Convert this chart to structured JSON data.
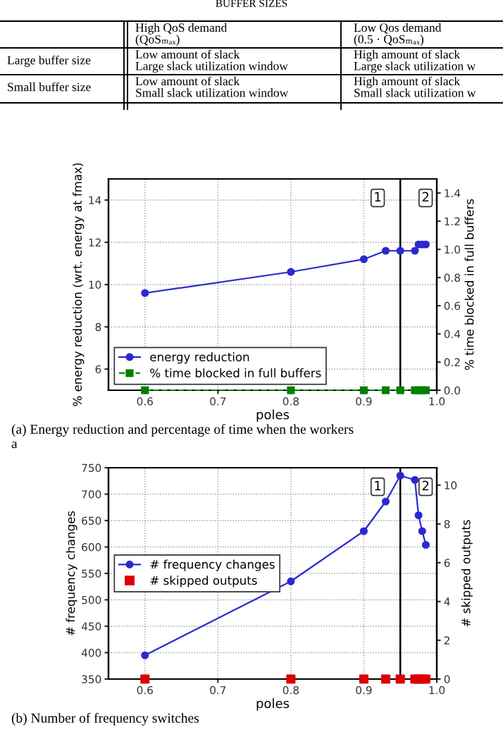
{
  "chart_data": [
    {
      "type": "other",
      "title": "BUFFER SIZES",
      "annotations": [
        "High QoS demand\n(QoSₘₐₓ)",
        "Low Qos demand\n(0.5 · QoSₘₐₓ)",
        "Large buffer size",
        "Low amount of slack\nLarge slack utilization window",
        "High amount of slack\nLarge slack utilization w",
        "Small buffer size",
        "Low amount of slack\nSmall slack utilization window",
        "High amount of slack\nSmall slack utilization w"
      ]
    },
    {
      "type": "line",
      "xlabel": "poles",
      "ylabel": "% energy reduction (wrt. energy at fmax)",
      "y2label": "% time blocked in full buffers",
      "xlim": [
        0.55,
        1.0
      ],
      "xticks": [
        0.6,
        0.7,
        0.8,
        0.9,
        {
          "value": 1,
          "label": "1.0"
        }
      ],
      "ylim": [
        5,
        15
      ],
      "yticks": [
        6,
        8,
        10,
        12,
        14
      ],
      "y2lim": [
        0,
        1.5
      ],
      "y2ticks": [
        {
          "value": 0,
          "label": "0.0"
        },
        0.2,
        0.4,
        0.6,
        0.8,
        {
          "value": 1,
          "label": "1.0"
        },
        1.2,
        1.4
      ],
      "grid": true,
      "legend": "bottom left",
      "series": [
        {
          "name": "energy reduction",
          "color": "#2a2ad0",
          "marker": "circle",
          "line_style": "solid",
          "x": [
            0.6,
            0.8,
            0.9,
            0.93,
            0.95,
            0.97,
            0.975,
            0.98,
            0.985
          ],
          "values": [
            9.6,
            10.6,
            11.2,
            11.6,
            11.6,
            11.6,
            11.9,
            11.9,
            11.9
          ]
        },
        {
          "name": "% time blocked in full buffers",
          "color": "#008000",
          "marker": "square",
          "line_style": "dashed",
          "axis": "y2",
          "x": [
            0.6,
            0.8,
            0.9,
            0.93,
            0.95,
            0.97,
            0.975,
            0.98,
            0.985
          ],
          "values": [
            0,
            0,
            0,
            0,
            0,
            0,
            0,
            0,
            0
          ]
        }
      ],
      "ref_lines": [
        {
          "axis": "x",
          "value": 0.95,
          "color": "#000000"
        }
      ],
      "annotations": [
        "1",
        "2",
        "(a) Energy reduction and percentage of time when the workers\na"
      ]
    },
    {
      "type": "line",
      "xlabel": "poles",
      "ylabel": "# frequency changes",
      "y2label": "# skipped outputs",
      "xlim": [
        0.55,
        1.0
      ],
      "xticks": [
        0.6,
        0.7,
        0.8,
        0.9,
        {
          "value": 1,
          "label": "1.0"
        }
      ],
      "ylim": [
        350,
        750
      ],
      "yticks": [
        350,
        400,
        450,
        500,
        550,
        600,
        650,
        700,
        750
      ],
      "y2lim": [
        0,
        10.9
      ],
      "y2ticks": [
        0,
        2,
        4,
        6,
        8,
        10
      ],
      "grid": true,
      "legend": "left",
      "series": [
        {
          "name": "# frequency changes",
          "color": "#2a2ad0",
          "marker": "circle",
          "line_style": "solid",
          "x": [
            0.6,
            0.8,
            0.9,
            0.93,
            0.95,
            0.97,
            0.975,
            0.98,
            0.985
          ],
          "values": [
            395,
            535,
            630,
            686,
            735,
            727,
            660,
            630,
            604
          ]
        },
        {
          "name": "# skipped outputs",
          "type": "scatter",
          "color": "#dd0000",
          "marker": "square",
          "axis": "y2",
          "x": [
            0.6,
            0.8,
            0.9,
            0.93,
            0.95,
            0.97,
            0.975,
            0.98,
            0.985
          ],
          "values": [
            0,
            0,
            0,
            0,
            0,
            0,
            0,
            0,
            0
          ]
        }
      ],
      "ref_lines": [
        {
          "axis": "x",
          "value": 0.95,
          "color": "#000000"
        }
      ],
      "annotations": [
        "1",
        "2",
        "(b) Number of frequency switches"
      ]
    }
  ]
}
